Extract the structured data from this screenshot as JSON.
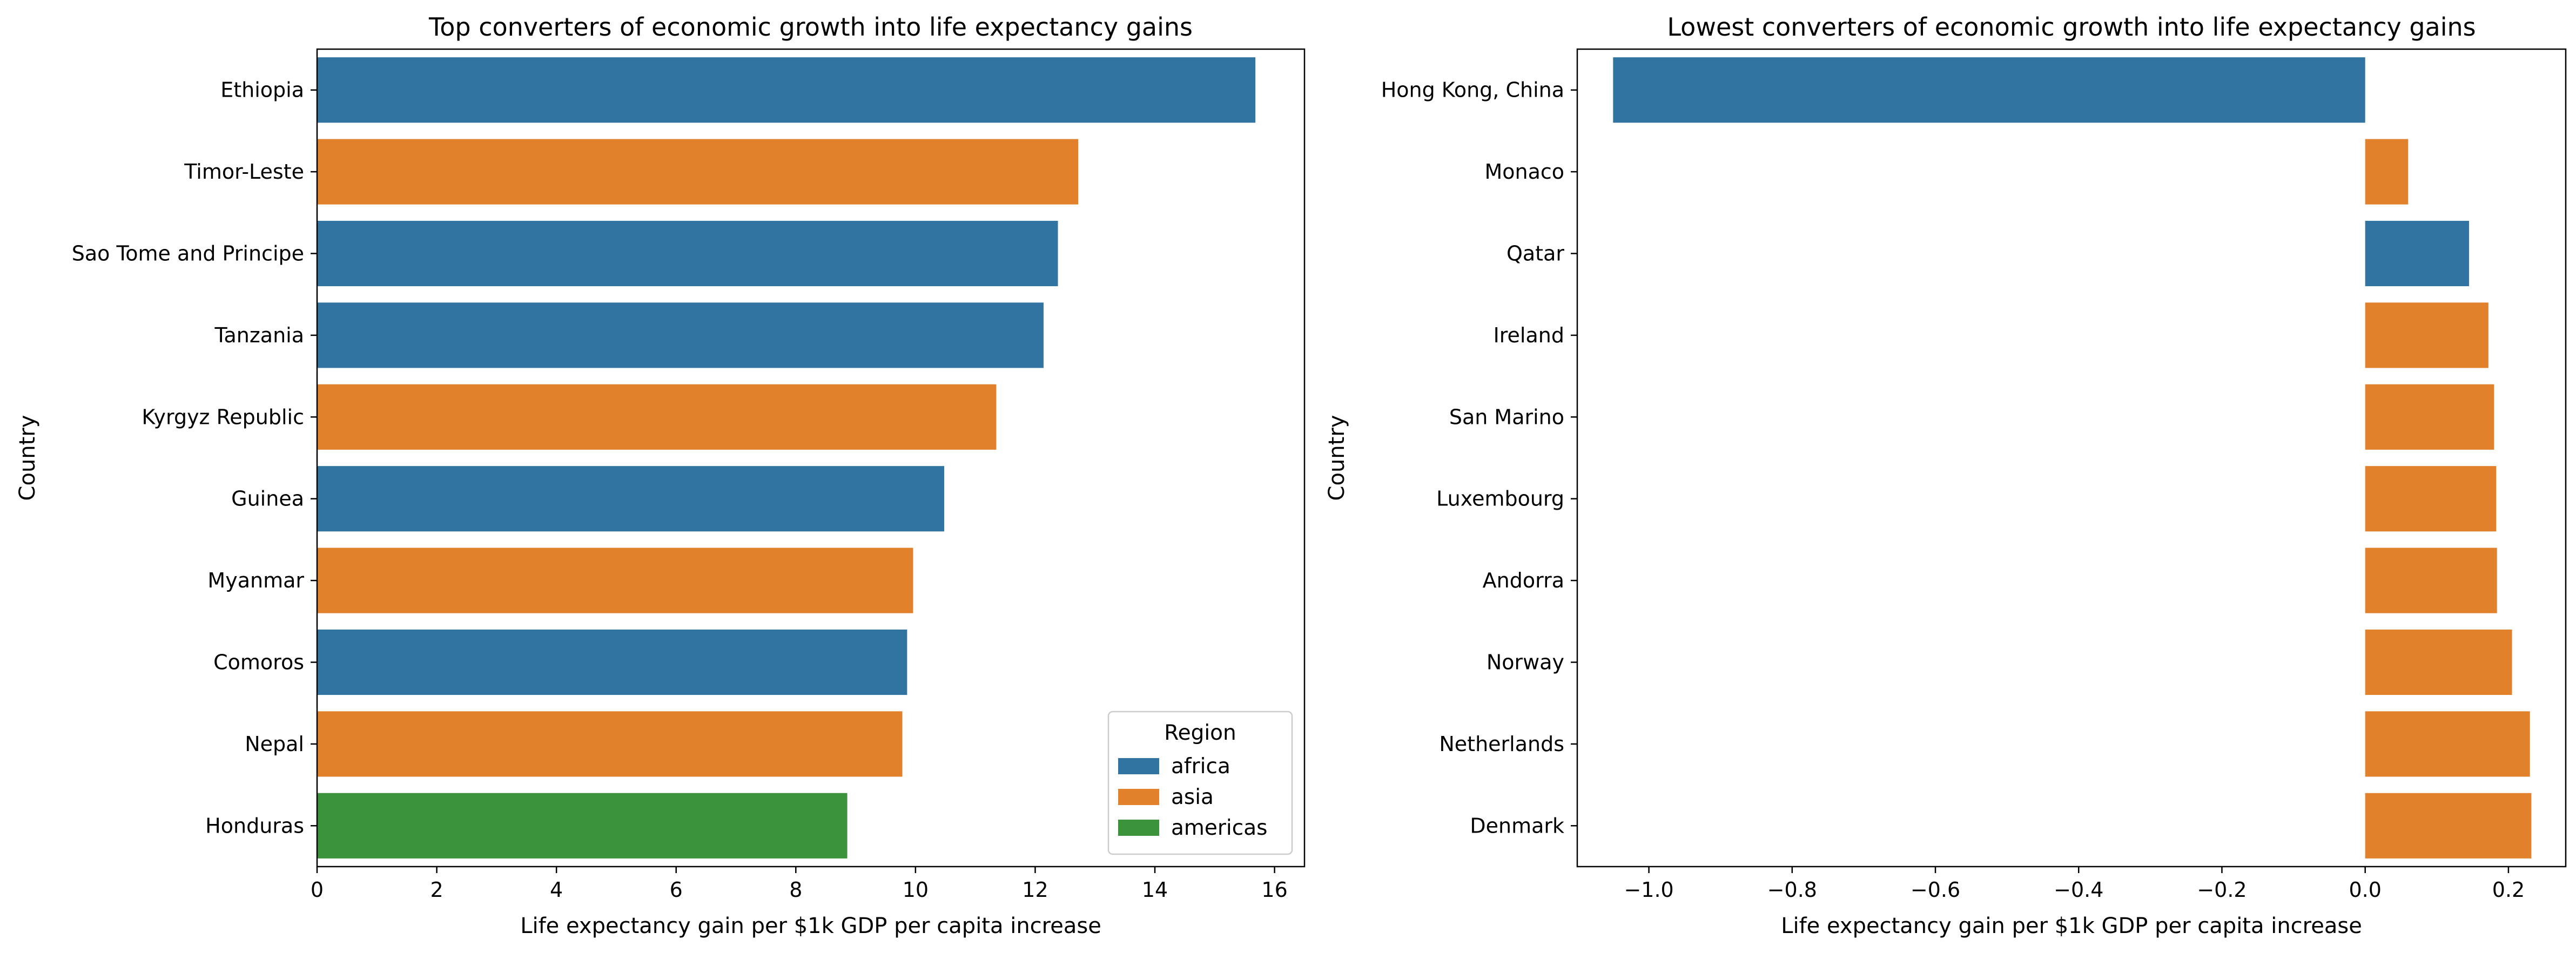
{
  "colors": {
    "africa": "#3274a1",
    "asia": "#e1812c",
    "americas": "#3a923a"
  },
  "legend": {
    "title": "Region",
    "placement": "lower-right",
    "entries": [
      "africa",
      "asia",
      "americas"
    ]
  },
  "chart_data": [
    {
      "type": "bar",
      "orientation": "horizontal",
      "title": "Top converters of economic growth into life expectancy gains",
      "xlabel": "Life expectancy gain per $1k GDP per capita increase",
      "ylabel": "Country",
      "xlim": [
        0,
        16.5
      ],
      "xticks": [
        0,
        2,
        4,
        6,
        8,
        10,
        12,
        14,
        16
      ],
      "xtick_labels": [
        "0",
        "2",
        "4",
        "6",
        "8",
        "10",
        "12",
        "14",
        "16"
      ],
      "grid": false,
      "categories": [
        "Ethiopia",
        "Timor-Leste",
        "Sao Tome and Principe",
        "Tanzania",
        "Kyrgyz Republic",
        "Guinea",
        "Myanmar",
        "Comoros",
        "Nepal",
        "Honduras"
      ],
      "values": [
        15.68,
        12.72,
        12.38,
        12.14,
        11.35,
        10.48,
        9.96,
        9.86,
        9.78,
        8.86
      ],
      "regions": [
        "africa",
        "asia",
        "africa",
        "africa",
        "asia",
        "africa",
        "asia",
        "africa",
        "asia",
        "americas"
      ]
    },
    {
      "type": "bar",
      "orientation": "horizontal",
      "title": "Lowest converters of economic growth into life expectancy gains",
      "xlabel": "Life expectancy gain per $1k GDP per capita increase",
      "ylabel": "Country",
      "xlim": [
        -1.1,
        0.28
      ],
      "xticks": [
        -1.0,
        -0.8,
        -0.6,
        -0.4,
        -0.2,
        0.0,
        0.2
      ],
      "xtick_labels": [
        "−1.0",
        "−0.8",
        "−0.6",
        "−0.4",
        "−0.2",
        "0.0",
        "0.2"
      ],
      "grid": false,
      "categories": [
        "Hong Kong, China",
        "Monaco",
        "Qatar",
        "Ireland",
        "San Marino",
        "Luxembourg",
        "Andorra",
        "Norway",
        "Netherlands",
        "Denmark"
      ],
      "values": [
        -1.05,
        0.06,
        0.145,
        0.172,
        0.18,
        0.183,
        0.184,
        0.205,
        0.23,
        0.232
      ],
      "regions": [
        "africa",
        "asia",
        "africa",
        "asia",
        "asia",
        "asia",
        "asia",
        "asia",
        "asia",
        "asia"
      ]
    }
  ]
}
